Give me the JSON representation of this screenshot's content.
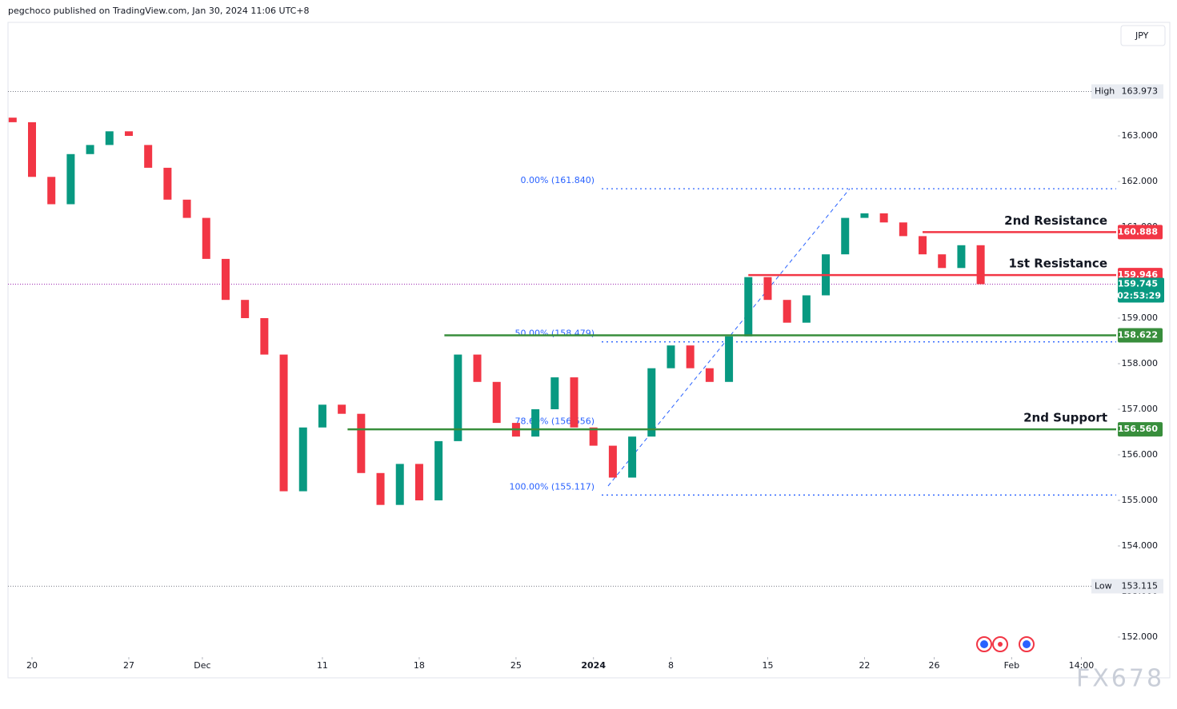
{
  "header": "pegchoco published on TradingView.com, Jan 30, 2024 11:06 UTC+8",
  "currency": "JPY",
  "watermark": "FX678",
  "chart_data": {
    "type": "candlestick",
    "up_color": "#089981",
    "down_color": "#f23645",
    "x": [
      -1,
      0,
      1,
      2,
      3,
      4,
      5,
      6,
      7,
      8,
      9,
      10,
      11,
      12,
      13,
      14,
      15,
      16,
      17,
      18,
      19,
      20,
      21,
      22,
      23,
      24,
      25,
      26,
      27,
      28,
      29,
      30,
      31,
      32,
      33,
      34,
      35,
      36,
      37,
      38,
      39,
      40,
      41,
      42,
      43,
      44,
      45,
      46,
      47,
      48,
      49
    ],
    "open": [
      163.4,
      163.3,
      162.1,
      161.5,
      162.6,
      162.8,
      163.1,
      162.8,
      162.3,
      161.6,
      161.2,
      160.3,
      159.4,
      159.0,
      158.2,
      155.2,
      156.6,
      157.1,
      156.9,
      155.6,
      154.9,
      155.8,
      155.0,
      156.3,
      158.2,
      157.6,
      156.7,
      156.4,
      157.0,
      157.7,
      156.6,
      156.2,
      155.5,
      156.4,
      157.9,
      158.4,
      157.9,
      157.6,
      158.6,
      159.9,
      159.4,
      158.9,
      159.5,
      160.4,
      161.2,
      161.3,
      161.1,
      160.8,
      160.4,
      160.1,
      160.6
    ],
    "high": {
      "label": "High",
      "value": 163.973,
      "value_label": "163.973"
    },
    "low": {
      "label": "Low",
      "value": 153.115,
      "value_label": "153.115"
    },
    "close": [
      163.3,
      162.1,
      161.5,
      162.6,
      162.8,
      163.1,
      163.0,
      162.3,
      161.6,
      161.2,
      160.3,
      159.4,
      159.0,
      158.2,
      155.2,
      156.6,
      157.1,
      156.9,
      155.6,
      154.9,
      155.8,
      155.0,
      156.3,
      158.2,
      157.6,
      156.7,
      156.4,
      157.0,
      157.7,
      156.6,
      156.2,
      155.5,
      156.4,
      157.9,
      158.4,
      157.9,
      157.6,
      158.6,
      159.9,
      159.4,
      158.9,
      159.5,
      160.4,
      161.2,
      161.3,
      161.1,
      160.8,
      160.4,
      160.1,
      160.6,
      159.745
    ],
    "xlim": [
      -1.24,
      56
    ],
    "ylim": [
      151.105,
      165.456
    ],
    "xticks": [
      {
        "value": 0,
        "label": "20"
      },
      {
        "value": 5,
        "label": "27"
      },
      {
        "value": 8.8,
        "label": "Dec"
      },
      {
        "value": 15,
        "label": "11"
      },
      {
        "value": 20,
        "label": "18"
      },
      {
        "value": 25,
        "label": "25"
      },
      {
        "value": 29,
        "label": "2024"
      },
      {
        "value": 33,
        "label": "8"
      },
      {
        "value": 38,
        "label": "15"
      },
      {
        "value": 43,
        "label": "22"
      },
      {
        "value": 46.6,
        "label": "26"
      },
      {
        "value": 50.6,
        "label": "Feb"
      },
      {
        "value": 54.2,
        "label": "14:00"
      }
    ],
    "yticks": [
      {
        "value": 152,
        "label": "152.000"
      },
      {
        "value": 153,
        "label": "153.000"
      },
      {
        "value": 154,
        "label": "154.000"
      },
      {
        "value": 155,
        "label": "155.000"
      },
      {
        "value": 156,
        "label": "156.000"
      },
      {
        "value": 157,
        "label": "157.000"
      },
      {
        "value": 158,
        "label": "158.000"
      },
      {
        "value": 159,
        "label": "159.000"
      },
      {
        "value": 160,
        "label": "160.000"
      },
      {
        "value": 161,
        "label": "161.000"
      },
      {
        "value": 162,
        "label": "162.000"
      },
      {
        "value": 163,
        "label": "163.000"
      }
    ],
    "levels": [
      {
        "label": "2nd Resistance",
        "value": 160.888,
        "value_label": "160.888",
        "color": "#f23645",
        "start": 46
      },
      {
        "label": "1st Resistance",
        "value": 159.946,
        "value_label": "159.946",
        "color": "#f23645",
        "start": 37
      },
      {
        "value": 158.622,
        "value_label": "158.622",
        "color": "#388e3c",
        "start": 21.3
      },
      {
        "label": "2nd Support",
        "value": 156.56,
        "value_label": "156.560",
        "color": "#388e3c",
        "start": 16.3
      }
    ],
    "fib": [
      {
        "label": "0.00% (161.840)",
        "value": 161.84
      },
      {
        "label": "50.00% (158.479)",
        "value": 158.479
      },
      {
        "label": "78.60% (156.556)",
        "value": 156.556
      },
      {
        "label": "100.00% (155.117)",
        "value": 155.117
      }
    ],
    "last": {
      "value": 159.745,
      "value_label": "159.745",
      "countdown": "02:53:29"
    }
  }
}
